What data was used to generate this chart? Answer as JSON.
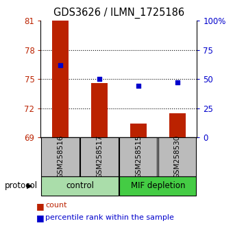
{
  "title": "GDS3626 / ILMN_1725186",
  "samples": [
    "GSM258516",
    "GSM258517",
    "GSM258515",
    "GSM258530"
  ],
  "bar_values": [
    81.0,
    74.6,
    70.4,
    71.5
  ],
  "bar_baseline": 69.0,
  "percentile_values": [
    62,
    50,
    44,
    47
  ],
  "left_ylim": [
    69,
    81
  ],
  "left_yticks": [
    69,
    72,
    75,
    78,
    81
  ],
  "right_ylim": [
    0,
    100
  ],
  "right_yticks": [
    0,
    25,
    50,
    75,
    100
  ],
  "right_yticklabels": [
    "0",
    "25",
    "50",
    "75",
    "100%"
  ],
  "bar_color": "#BB2200",
  "dot_color": "#0000CC",
  "grid_color": "#000000",
  "groups": [
    {
      "label": "control",
      "samples": [
        0,
        1
      ],
      "color": "#AADDAA"
    },
    {
      "label": "MIF depletion",
      "samples": [
        2,
        3
      ],
      "color": "#44CC44"
    }
  ],
  "protocol_label": "protocol",
  "legend_count_label": "count",
  "legend_pct_label": "percentile rank within the sample",
  "sample_box_color": "#BBBBBB",
  "bg_color": "#FFFFFF"
}
